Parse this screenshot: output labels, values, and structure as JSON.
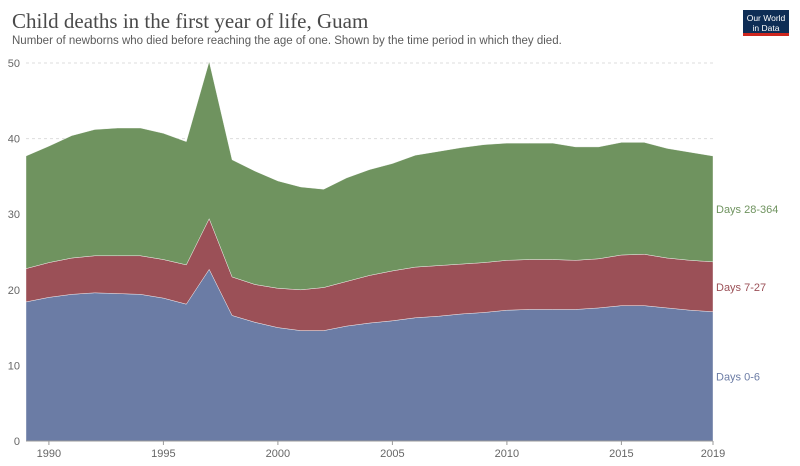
{
  "header": {
    "title": "Child deaths in the first year of life, Guam",
    "subtitle": "Number of newborns who died before reaching the age of one. Shown by the time period in which they died."
  },
  "logo": {
    "line1": "Our World",
    "line2": "in Data"
  },
  "colors": {
    "days_0_6": "#6b7ca5",
    "days_7_27": "#9b5057",
    "days_28_364": "#6f935f",
    "grid": "#dddddd",
    "axis": "#999999"
  },
  "chart_data": {
    "type": "area",
    "stacked": true,
    "title": "Child deaths in the first year of life, Guam",
    "x": [
      1989,
      1990,
      1991,
      1992,
      1993,
      1994,
      1995,
      1996,
      1997,
      1998,
      1999,
      2000,
      2001,
      2002,
      2003,
      2004,
      2005,
      2006,
      2007,
      2008,
      2009,
      2010,
      2011,
      2012,
      2013,
      2014,
      2015,
      2016,
      2017,
      2018,
      2019
    ],
    "x_ticks": [
      1990,
      1995,
      2000,
      2005,
      2010,
      2015,
      2019
    ],
    "ylim": [
      0,
      50
    ],
    "y_ticks": [
      0,
      10,
      20,
      30,
      40,
      50
    ],
    "grid": true,
    "legend_placement": "right-inline",
    "series": [
      {
        "name": "Days 0-6",
        "key": "days_0_6",
        "values": [
          18.4,
          19.0,
          19.4,
          19.6,
          19.5,
          19.4,
          18.9,
          18.1,
          22.7,
          16.6,
          15.7,
          15.0,
          14.6,
          14.6,
          15.2,
          15.6,
          15.9,
          16.3,
          16.5,
          16.8,
          17.0,
          17.3,
          17.4,
          17.4,
          17.4,
          17.6,
          17.9,
          17.9,
          17.6,
          17.3,
          17.1
        ]
      },
      {
        "name": "Days 7-27",
        "key": "days_7_27",
        "values": [
          4.4,
          4.6,
          4.8,
          4.9,
          5.0,
          5.1,
          5.1,
          5.2,
          6.7,
          5.1,
          5.0,
          5.2,
          5.4,
          5.7,
          5.9,
          6.3,
          6.6,
          6.7,
          6.7,
          6.6,
          6.6,
          6.6,
          6.6,
          6.6,
          6.5,
          6.5,
          6.7,
          6.8,
          6.6,
          6.6,
          6.6
        ]
      },
      {
        "name": "Days 28-364",
        "key": "days_28_364",
        "values": [
          14.9,
          15.4,
          16.2,
          16.7,
          16.9,
          16.9,
          16.7,
          16.3,
          20.8,
          15.5,
          15.0,
          14.2,
          13.6,
          13.0,
          13.7,
          14.0,
          14.2,
          14.8,
          15.1,
          15.4,
          15.6,
          15.5,
          15.4,
          15.4,
          15.0,
          14.8,
          14.9,
          14.8,
          14.5,
          14.3,
          14.0
        ]
      }
    ]
  }
}
